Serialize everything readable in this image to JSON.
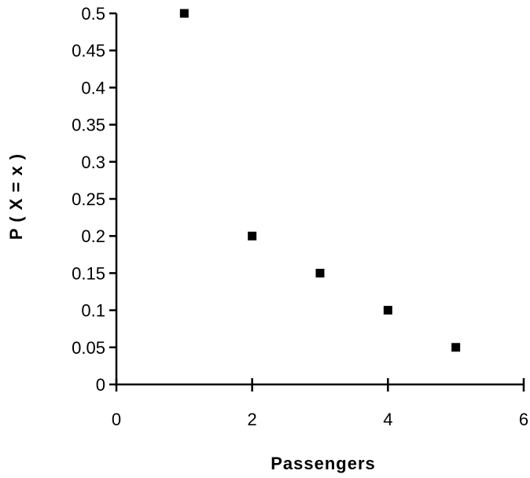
{
  "chart_data": {
    "type": "scatter",
    "title": "",
    "xlabel": "Passengers",
    "ylabel": "P ( X = x )",
    "xlim": [
      0,
      6
    ],
    "ylim": [
      0,
      0.5
    ],
    "xticks": [
      0,
      2,
      4,
      6
    ],
    "xtick_labels": [
      "0",
      "2",
      "4",
      "6"
    ],
    "yticks": [
      0,
      0.05,
      0.1,
      0.15,
      0.2,
      0.25,
      0.3,
      0.35,
      0.4,
      0.45,
      0.5
    ],
    "ytick_labels": [
      "0",
      "0.05",
      "0.1",
      "0.15",
      "0.2",
      "0.25",
      "0.3",
      "0.35",
      "0.4",
      "0.45",
      "0.5"
    ],
    "grid": false,
    "legend": "none",
    "series": [
      {
        "x": [
          1,
          2,
          3,
          4,
          5
        ],
        "y": [
          0.5,
          0.2,
          0.15,
          0.1,
          0.05
        ],
        "marker": "square",
        "color": "#000000"
      }
    ]
  }
}
